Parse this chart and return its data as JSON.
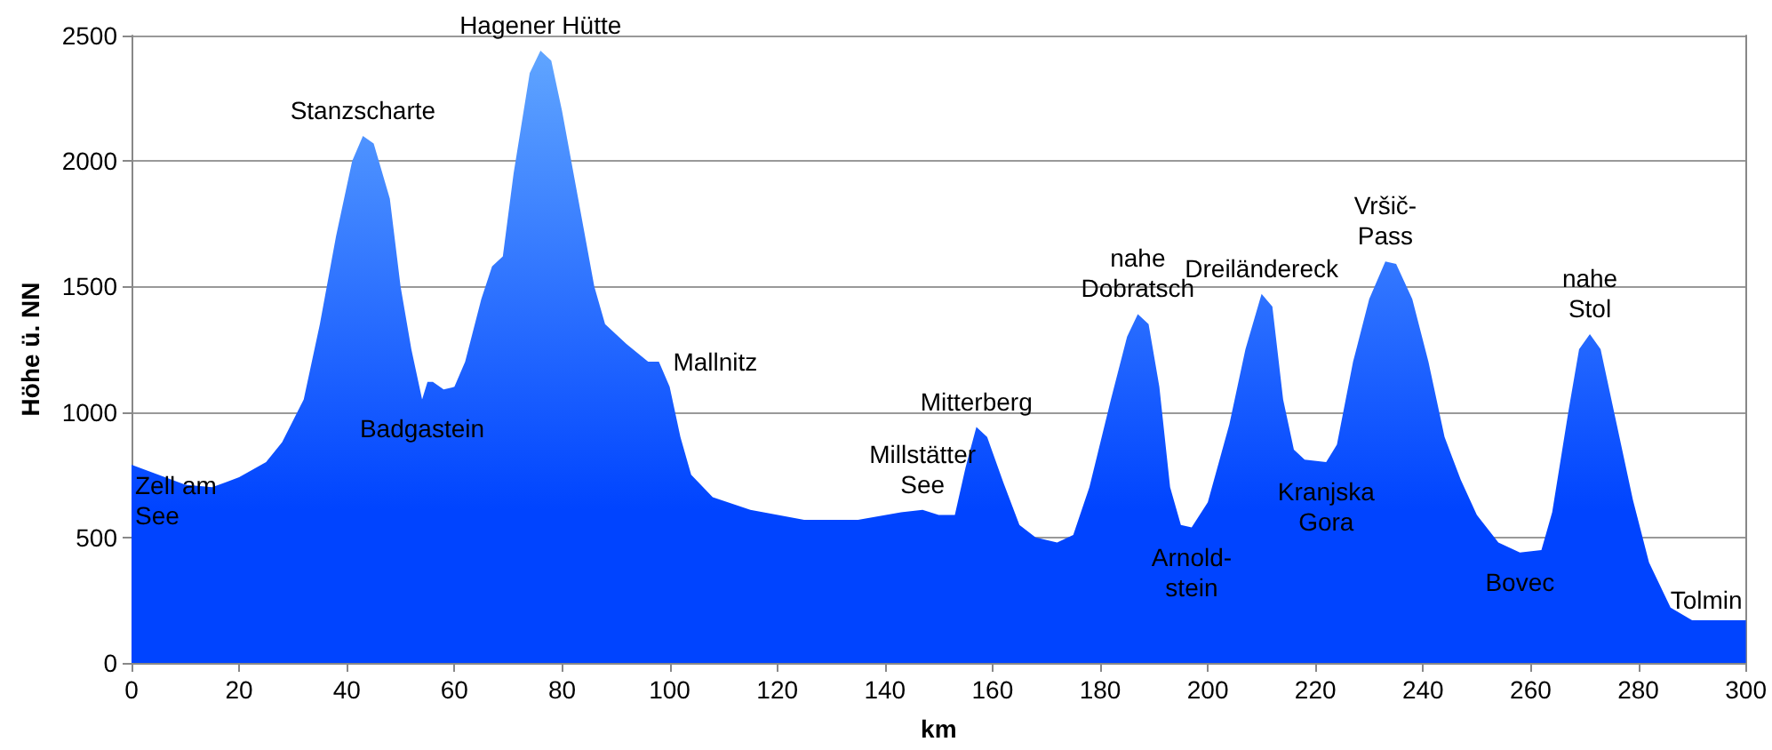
{
  "chart_data": {
    "type": "area",
    "xlabel": "km",
    "ylabel": "Höhe ü. NN",
    "xlim": [
      0,
      300
    ],
    "xticks": [
      0,
      20,
      40,
      60,
      80,
      100,
      120,
      140,
      160,
      180,
      200,
      220,
      240,
      260,
      280,
      300
    ],
    "ylim": [
      0,
      2500
    ],
    "yticks": [
      0,
      500,
      1000,
      1500,
      2000,
      2500
    ],
    "grid": "y",
    "x": [
      0,
      5,
      10,
      15,
      20,
      25,
      28,
      32,
      35,
      38,
      41,
      43,
      45,
      48,
      50,
      52,
      54,
      55,
      56,
      58,
      60,
      62,
      65,
      67,
      69,
      71,
      74,
      76,
      78,
      80,
      83,
      86,
      88,
      92,
      96,
      98,
      100,
      102,
      104,
      108,
      115,
      125,
      135,
      143,
      147,
      150,
      153,
      155,
      157,
      159,
      162,
      165,
      168,
      172,
      175,
      178,
      182,
      185,
      187,
      189,
      191,
      193,
      195,
      197,
      200,
      204,
      207,
      210,
      212,
      214,
      216,
      218,
      222,
      224,
      227,
      230,
      233,
      235,
      238,
      241,
      244,
      247,
      250,
      254,
      258,
      262,
      264,
      267,
      269,
      271,
      273,
      276,
      279,
      282,
      286,
      290,
      295,
      300
    ],
    "series": [
      {
        "color": "#0044ff",
        "values": [
          790,
          750,
          710,
          700,
          740,
          800,
          880,
          1050,
          1350,
          1700,
          2000,
          2100,
          2070,
          1850,
          1500,
          1250,
          1050,
          1120,
          1120,
          1090,
          1100,
          1200,
          1450,
          1580,
          1620,
          1950,
          2350,
          2440,
          2400,
          2200,
          1850,
          1500,
          1350,
          1270,
          1200,
          1200,
          1100,
          900,
          750,
          660,
          610,
          570,
          570,
          600,
          610,
          590,
          590,
          780,
          940,
          900,
          720,
          550,
          500,
          480,
          510,
          700,
          1050,
          1300,
          1390,
          1350,
          1100,
          700,
          550,
          540,
          640,
          950,
          1250,
          1470,
          1420,
          1050,
          850,
          810,
          800,
          870,
          1200,
          1450,
          1600,
          1590,
          1450,
          1200,
          900,
          730,
          590,
          480,
          440,
          450,
          600,
          1000,
          1250,
          1310,
          1250,
          950,
          650,
          400,
          220,
          170,
          170,
          170
        ]
      }
    ],
    "annotations": [
      {
        "text": "Zell am\nSee",
        "x": 0,
        "y": 790
      },
      {
        "text": "Stanzscharte",
        "x": 43,
        "y": 2100
      },
      {
        "text": "Hagener Hütte",
        "x": 76,
        "y": 2440
      },
      {
        "text": "Badgastein",
        "x": 54,
        "y": 1050
      },
      {
        "text": "Mallnitz",
        "x": 98,
        "y": 1200
      },
      {
        "text": "Millstätter\nSee",
        "x": 147,
        "y": 610
      },
      {
        "text": "Mitterberg",
        "x": 157,
        "y": 940
      },
      {
        "text": "nahe\nDobratsch",
        "x": 187,
        "y": 1390
      },
      {
        "text": "Arnold-\nstein",
        "x": 197,
        "y": 540
      },
      {
        "text": "Dreiländereck",
        "x": 210,
        "y": 1470
      },
      {
        "text": "Vršič-\nPass",
        "x": 233,
        "y": 1600
      },
      {
        "text": "Kranjska\nGora",
        "x": 222,
        "y": 800
      },
      {
        "text": "nahe\nStol",
        "x": 271,
        "y": 1310
      },
      {
        "text": "Bovec",
        "x": 258,
        "y": 440
      },
      {
        "text": "Tolmin",
        "x": 300,
        "y": 170
      }
    ]
  }
}
